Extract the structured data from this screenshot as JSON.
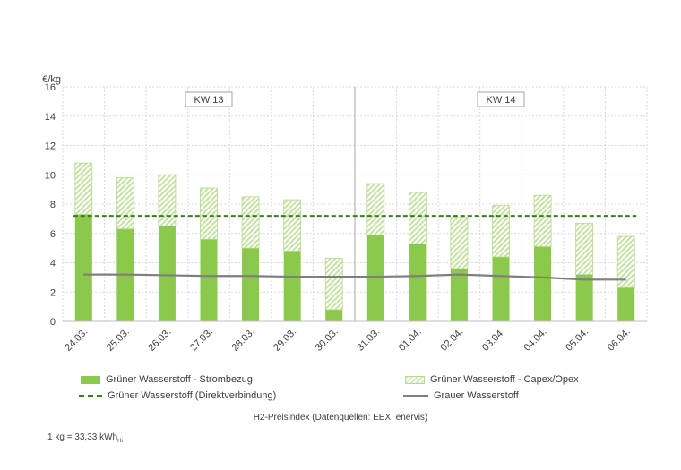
{
  "chart_data": {
    "type": "bar",
    "unit_label": "€/kg",
    "ylim": [
      0,
      16
    ],
    "yticks": [
      0,
      2,
      4,
      6,
      8,
      10,
      12,
      14,
      16
    ],
    "categories": [
      "24.03.",
      "25.03.",
      "26.03.",
      "27.03.",
      "28.03.",
      "29.03.",
      "30.03.",
      "31.03.",
      "01.04.",
      "02.04.",
      "03.04.",
      "04.04.",
      "05.04.",
      "06.04."
    ],
    "series": [
      {
        "name": "Grüner Wasserstoff - Strombezug",
        "kind": "stacked-bar",
        "color": "#8cc84b",
        "values": [
          7.3,
          6.3,
          6.5,
          5.6,
          5.0,
          4.8,
          0.8,
          5.9,
          5.3,
          3.6,
          4.4,
          5.1,
          3.2,
          2.3
        ]
      },
      {
        "name": "Grüner Wasserstoff - Capex/Opex",
        "kind": "stacked-bar-hatched",
        "color": "#b5d98f",
        "values": [
          3.5,
          3.5,
          3.5,
          3.5,
          3.5,
          3.5,
          3.5,
          3.5,
          3.5,
          3.5,
          3.5,
          3.5,
          3.5,
          3.5
        ]
      },
      {
        "name": "Grüner Wasserstoff (Direktverbindung)",
        "kind": "dashed-line",
        "color": "#3a7d1e",
        "values": [
          7.2,
          7.2,
          7.2,
          7.2,
          7.2,
          7.2,
          7.2,
          7.2,
          7.2,
          7.2,
          7.2,
          7.2,
          7.2,
          7.2
        ]
      },
      {
        "name": "Grauer Wasserstoff",
        "kind": "line",
        "color": "#7f7f7f",
        "values": [
          3.2,
          3.2,
          3.15,
          3.1,
          3.1,
          3.05,
          3.05,
          3.05,
          3.1,
          3.2,
          3.1,
          3.0,
          2.85,
          2.85
        ]
      }
    ],
    "week_groups": [
      {
        "label": "KW 13",
        "from": 0,
        "to": 6
      },
      {
        "label": "KW 14",
        "from": 7,
        "to": 13
      }
    ],
    "grid": true,
    "legend_position": "bottom"
  },
  "subtitle": "H2-Preisindex (Datenquellen: EEX, enervis)",
  "footnote": {
    "text": "1 kg = 33,33 kWh",
    "sub": "Hi"
  }
}
